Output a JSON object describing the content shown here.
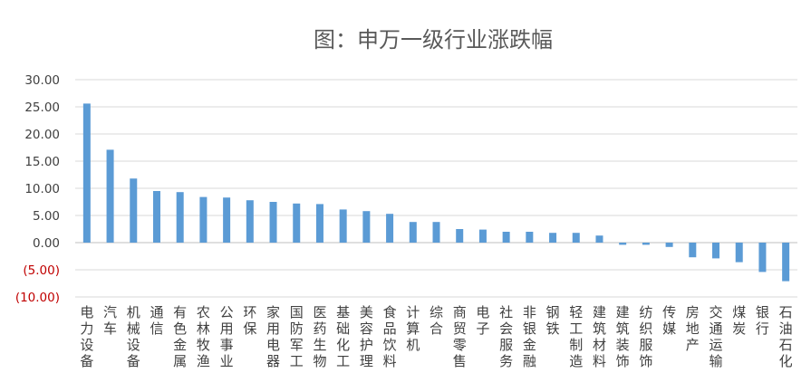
{
  "chart_data": {
    "type": "bar",
    "title": "图：申万一级行业涨跌幅",
    "xlabel": "",
    "ylabel": "",
    "ylim": [
      -10,
      30
    ],
    "ytick_values": [
      30,
      25,
      20,
      15,
      10,
      5,
      0,
      -5,
      -10
    ],
    "ytick_labels": [
      "30.00",
      "25.00",
      "20.00",
      "15.00",
      "10.00",
      "5.00",
      "0.00",
      "(5.00)",
      "(10.00)"
    ],
    "grid": true,
    "legend": "none",
    "bar_color": "#5b9bd5",
    "negative_label_color": "#c00000",
    "categories": [
      "电力设备",
      "汽车",
      "机械设备",
      "通信",
      "有色金属",
      "农林牧渔",
      "公用事业",
      "环保",
      "家用电器",
      "国防军工",
      "医药生物",
      "基础化工",
      "美容护理",
      "食品饮料",
      "计算机",
      "综合",
      "商贸零售",
      "电子",
      "社会服务",
      "非银金融",
      "钢铁",
      "轻工制造",
      "建筑材料",
      "建筑装饰",
      "纺织服饰",
      "传媒",
      "房地产",
      "交通运输",
      "煤炭",
      "银行",
      "石油石化"
    ],
    "values": [
      25.6,
      17.1,
      11.8,
      9.5,
      9.3,
      8.4,
      8.3,
      7.8,
      7.5,
      7.2,
      7.1,
      6.1,
      5.8,
      5.3,
      3.8,
      3.8,
      2.5,
      2.4,
      2.0,
      2.0,
      1.8,
      1.8,
      1.3,
      -0.4,
      -0.4,
      -0.8,
      -2.7,
      -2.9,
      -3.6,
      -5.4,
      -7.1
    ]
  }
}
